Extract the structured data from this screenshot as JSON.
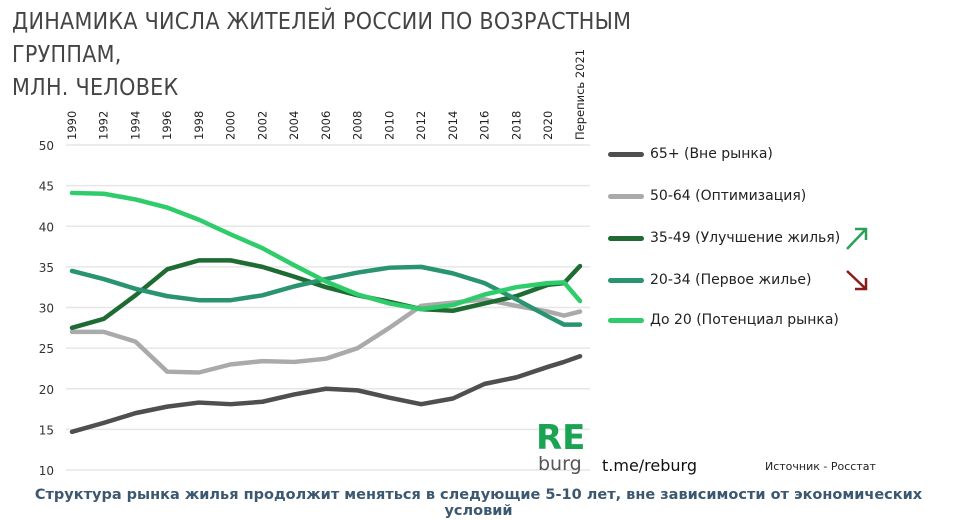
{
  "title_line1": "ДИНАМИКА ЧИСЛА ЖИТЕЛЕЙ РОССИИ ПО ВОЗРАСТНЫМ ГРУППАМ,",
  "title_line2": "МЛН. ЧЕЛОВЕК",
  "logo": {
    "main": "RE",
    "sub": "burg"
  },
  "link": "t.me/reburg",
  "source": "Источник - Росстат",
  "footer": "Структура рынка жилья продолжит меняться в следующие 5-10 лет, вне зависимости от экономических условий",
  "colors": {
    "up_arrow": "#2ca05a",
    "down_arrow": "#8b1a1a",
    "grid": "#e6e6e6"
  },
  "chart_data": {
    "type": "line",
    "title": "ДИНАМИКА ЧИСЛА ЖИТЕЛЕЙ РОССИИ ПО ВОЗРАСТНЫМ ГРУППАМ, МЛН. ЧЕЛОВЕК",
    "x_tick_labels": [
      "1990",
      "1992",
      "1994",
      "1996",
      "1998",
      "2000",
      "2002",
      "2004",
      "2006",
      "2008",
      "2010",
      "2012",
      "2014",
      "2016",
      "2018",
      "2020",
      "Перепись 2021"
    ],
    "x": [
      1990,
      1992,
      1994,
      1996,
      1998,
      2000,
      2002,
      2004,
      2006,
      2008,
      2010,
      2012,
      2014,
      2016,
      2018,
      2020,
      2021
    ],
    "census_label": "Перепись 2021",
    "ylim": [
      10,
      50
    ],
    "y_ticks": [
      10,
      15,
      20,
      25,
      30,
      35,
      40,
      45,
      50
    ],
    "grid": true,
    "legend_position": "right",
    "series": [
      {
        "name": "65+ (Вне рынка)",
        "color": "#4f4f4f",
        "values": [
          14.7,
          15.8,
          17.0,
          17.8,
          18.3,
          18.1,
          18.4,
          19.3,
          20.0,
          19.8,
          18.9,
          18.1,
          18.8,
          20.6,
          21.4,
          22.7,
          23.3
        ],
        "census": 24.0
      },
      {
        "name": "50-64 (Оптимизация)",
        "color": "#aaaaaa",
        "values": [
          27.0,
          27.0,
          25.8,
          22.1,
          22.0,
          23.0,
          23.4,
          23.3,
          23.7,
          25.0,
          27.5,
          30.2,
          30.6,
          31.0,
          30.2,
          29.5,
          29.0
        ],
        "census": 29.5
      },
      {
        "name": "35-49 (Улучшение жилья)",
        "color": "#1e6b33",
        "arrow": "up",
        "values": [
          27.5,
          28.6,
          31.5,
          34.7,
          35.8,
          35.8,
          35.0,
          33.8,
          32.5,
          31.5,
          30.7,
          29.8,
          29.6,
          30.5,
          31.4,
          32.8,
          33.0
        ],
        "census": 35.1
      },
      {
        "name": "20-34 (Первое жилье)",
        "color": "#2a9470",
        "arrow": "down",
        "values": [
          34.5,
          33.5,
          32.3,
          31.4,
          30.9,
          30.9,
          31.5,
          32.6,
          33.5,
          34.3,
          34.9,
          35.0,
          34.2,
          33.0,
          31.0,
          28.9,
          27.9
        ],
        "census": 27.9
      },
      {
        "name": "До 20 (Потенциал рынка)",
        "color": "#2ecc6a",
        "values": [
          44.1,
          44.0,
          43.3,
          42.3,
          40.8,
          39.0,
          37.3,
          35.2,
          33.2,
          31.6,
          30.5,
          29.8,
          30.3,
          31.6,
          32.5,
          33.0,
          33.1
        ],
        "census": 30.8
      }
    ]
  }
}
